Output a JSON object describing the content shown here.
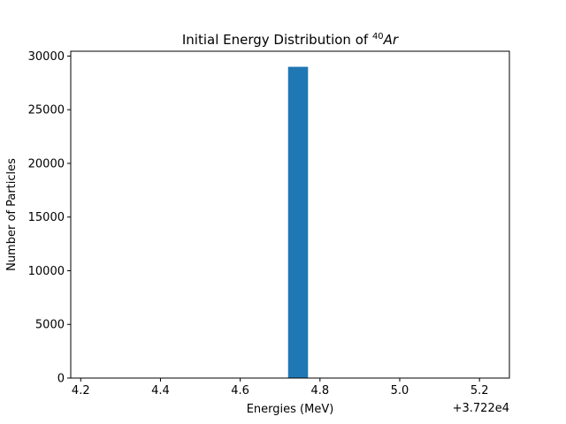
{
  "chart_data": {
    "type": "bar",
    "title_prefix": "Initial Energy Distribution of ",
    "title_mass_number": "40",
    "title_element": "Ar",
    "xlabel": "Energies (MeV)",
    "ylabel": "Number of Particles",
    "x_offset_label": "+3.722e4",
    "x_offset": 37220,
    "xlim": [
      4.175,
      5.275
    ],
    "ylim": [
      0,
      30450
    ],
    "x_ticks": [
      {
        "value": 4.2,
        "label": "4.2"
      },
      {
        "value": 4.4,
        "label": "4.4"
      },
      {
        "value": 4.6,
        "label": "4.6"
      },
      {
        "value": 4.8,
        "label": "4.8"
      },
      {
        "value": 5.0,
        "label": "5.0"
      },
      {
        "value": 5.2,
        "label": "5.2"
      }
    ],
    "y_ticks": [
      {
        "value": 0,
        "label": "0"
      },
      {
        "value": 5000,
        "label": "5000"
      },
      {
        "value": 10000,
        "label": "10000"
      },
      {
        "value": 15000,
        "label": "15000"
      },
      {
        "value": 20000,
        "label": "20000"
      },
      {
        "value": 25000,
        "label": "25000"
      },
      {
        "value": 30000,
        "label": "30000"
      }
    ],
    "bars": [
      {
        "x_start": 4.72,
        "x_end": 4.77,
        "value": 29000
      }
    ],
    "bar_color": "#1f77b4",
    "grid": false,
    "legend": "none"
  }
}
